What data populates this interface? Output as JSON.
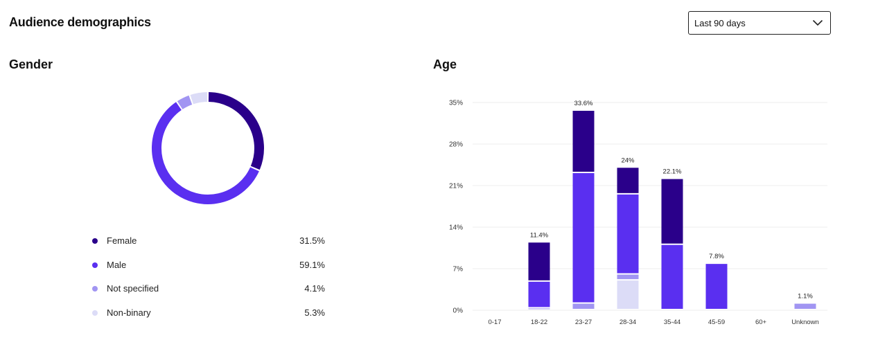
{
  "page": {
    "title": "Audience demographics",
    "date_range": {
      "selected": "Last 90 days",
      "icon": "chevron-down-icon"
    }
  },
  "gender": {
    "title": "Gender",
    "legend": [
      {
        "label": "Female",
        "value": "31.5%",
        "color": "#2a008a"
      },
      {
        "label": "Male",
        "value": "59.1%",
        "color": "#5a2ff0"
      },
      {
        "label": "Not specified",
        "value": "4.1%",
        "color": "#a195f2"
      },
      {
        "label": "Non-binary",
        "value": "5.3%",
        "color": "#dcdcf7"
      }
    ]
  },
  "age": {
    "title": "Age"
  },
  "chart_data": [
    {
      "type": "pie",
      "variant": "donut",
      "title": "Gender",
      "labels": [
        "Female",
        "Male",
        "Not specified",
        "Non-binary"
      ],
      "values": [
        31.5,
        59.1,
        4.1,
        5.3
      ],
      "colors": [
        "#2a008a",
        "#5a2ff0",
        "#a195f2",
        "#dcdcf7"
      ],
      "start": "top, clockwise"
    },
    {
      "type": "bar",
      "stacked": true,
      "title": "Age",
      "categories": [
        "0-17",
        "18-22",
        "23-27",
        "28-34",
        "35-44",
        "45-59",
        "60+",
        "Unknown"
      ],
      "yticks": [
        "0%",
        "7%",
        "14%",
        "21%",
        "28%",
        "35%"
      ],
      "ylim": [
        0,
        35
      ],
      "grid": true,
      "totals_labels": [
        "",
        "11.4%",
        "33.6%",
        "24%",
        "22.1%",
        "7.8%",
        "",
        "1.1%"
      ],
      "series": [
        {
          "name": "Non-binary",
          "color": "#dcdcf7",
          "values": [
            0,
            0,
            0,
            5.0,
            0,
            0,
            0,
            0
          ]
        },
        {
          "name": "Not specified",
          "color": "#a195f2",
          "values": [
            0,
            0.3,
            1.1,
            1.0,
            0,
            0,
            0,
            1.1
          ]
        },
        {
          "name": "Male",
          "color": "#5a2ff0",
          "values": [
            0,
            4.5,
            22.0,
            13.5,
            11.0,
            7.8,
            0,
            0
          ]
        },
        {
          "name": "Female",
          "color": "#2a008a",
          "values": [
            0,
            6.6,
            10.5,
            4.5,
            11.1,
            0,
            0,
            0
          ]
        }
      ]
    }
  ]
}
